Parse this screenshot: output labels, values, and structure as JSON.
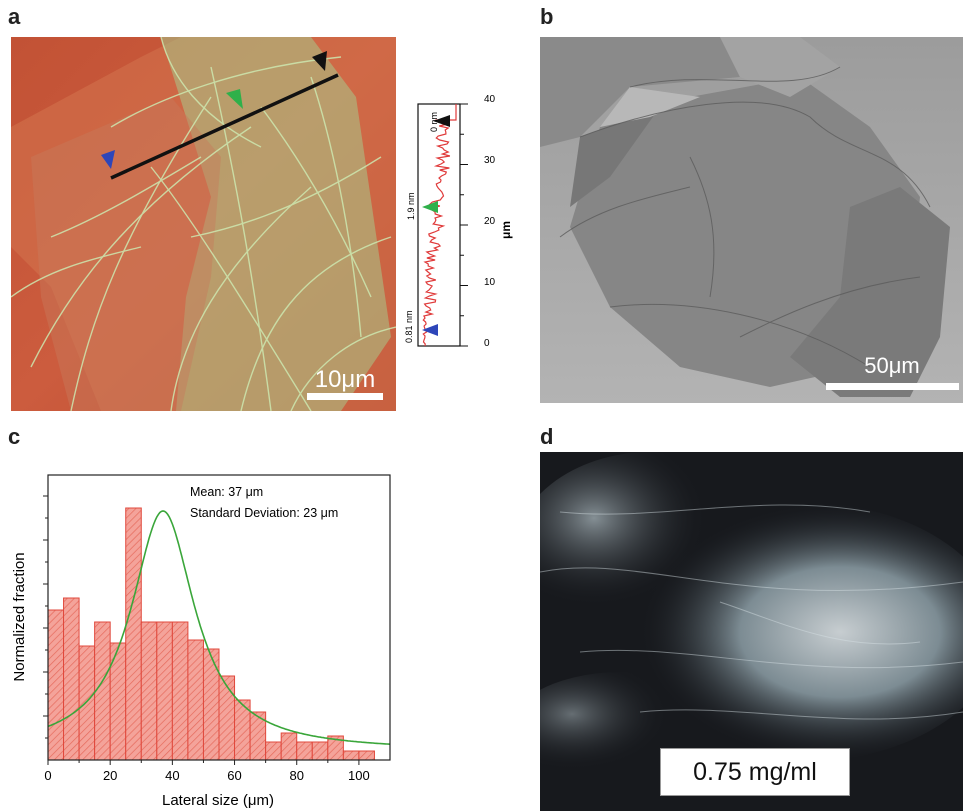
{
  "panels": {
    "a": {
      "label": "a",
      "scale_bar": "10μm",
      "profile": {
        "y_axis_label": "μm",
        "y_ticks": [
          "0",
          "10",
          "20",
          "30",
          "40"
        ],
        "ylim": [
          0,
          40
        ],
        "annotations": [
          "0.81 nm",
          "1.9 nm",
          "0 nm"
        ],
        "marker_colors": {
          "blue": "#2d46b9",
          "green": "#2fb04a",
          "black": "#111111"
        }
      }
    },
    "b": {
      "label": "b",
      "scale_bar": "50μm"
    },
    "c": {
      "label": "c"
    },
    "d": {
      "label": "d",
      "concentration": "0.75 mg/ml"
    }
  },
  "chart_data": {
    "type": "bar",
    "xlabel": "Lateral size (μm)",
    "ylabel": "Normalized fraction",
    "xlim": [
      0,
      110
    ],
    "x_ticks": [
      "0",
      "20",
      "40",
      "60",
      "80",
      "100"
    ],
    "bin_width": 5,
    "bin_starts": [
      0,
      5,
      10,
      15,
      20,
      25,
      30,
      35,
      40,
      45,
      50,
      55,
      60,
      65,
      70,
      75,
      80,
      85,
      90,
      95,
      100
    ],
    "values": [
      0.5,
      0.54,
      0.38,
      0.46,
      0.39,
      0.84,
      0.46,
      0.46,
      0.46,
      0.4,
      0.37,
      0.28,
      0.2,
      0.16,
      0.06,
      0.09,
      0.06,
      0.06,
      0.08,
      0.03,
      0.03
    ],
    "ylim": [
      0,
      0.95
    ],
    "fit": {
      "type": "lorentzian",
      "center": 37,
      "amplitude": 0.8,
      "hwhm": 12.5,
      "color": "#3aa63a"
    },
    "bar_fill": "#f4a39a",
    "bar_edge": "#e0483c",
    "annotations": [
      "Mean: 37 μm",
      "Standard Deviation: 23 μm"
    ]
  }
}
